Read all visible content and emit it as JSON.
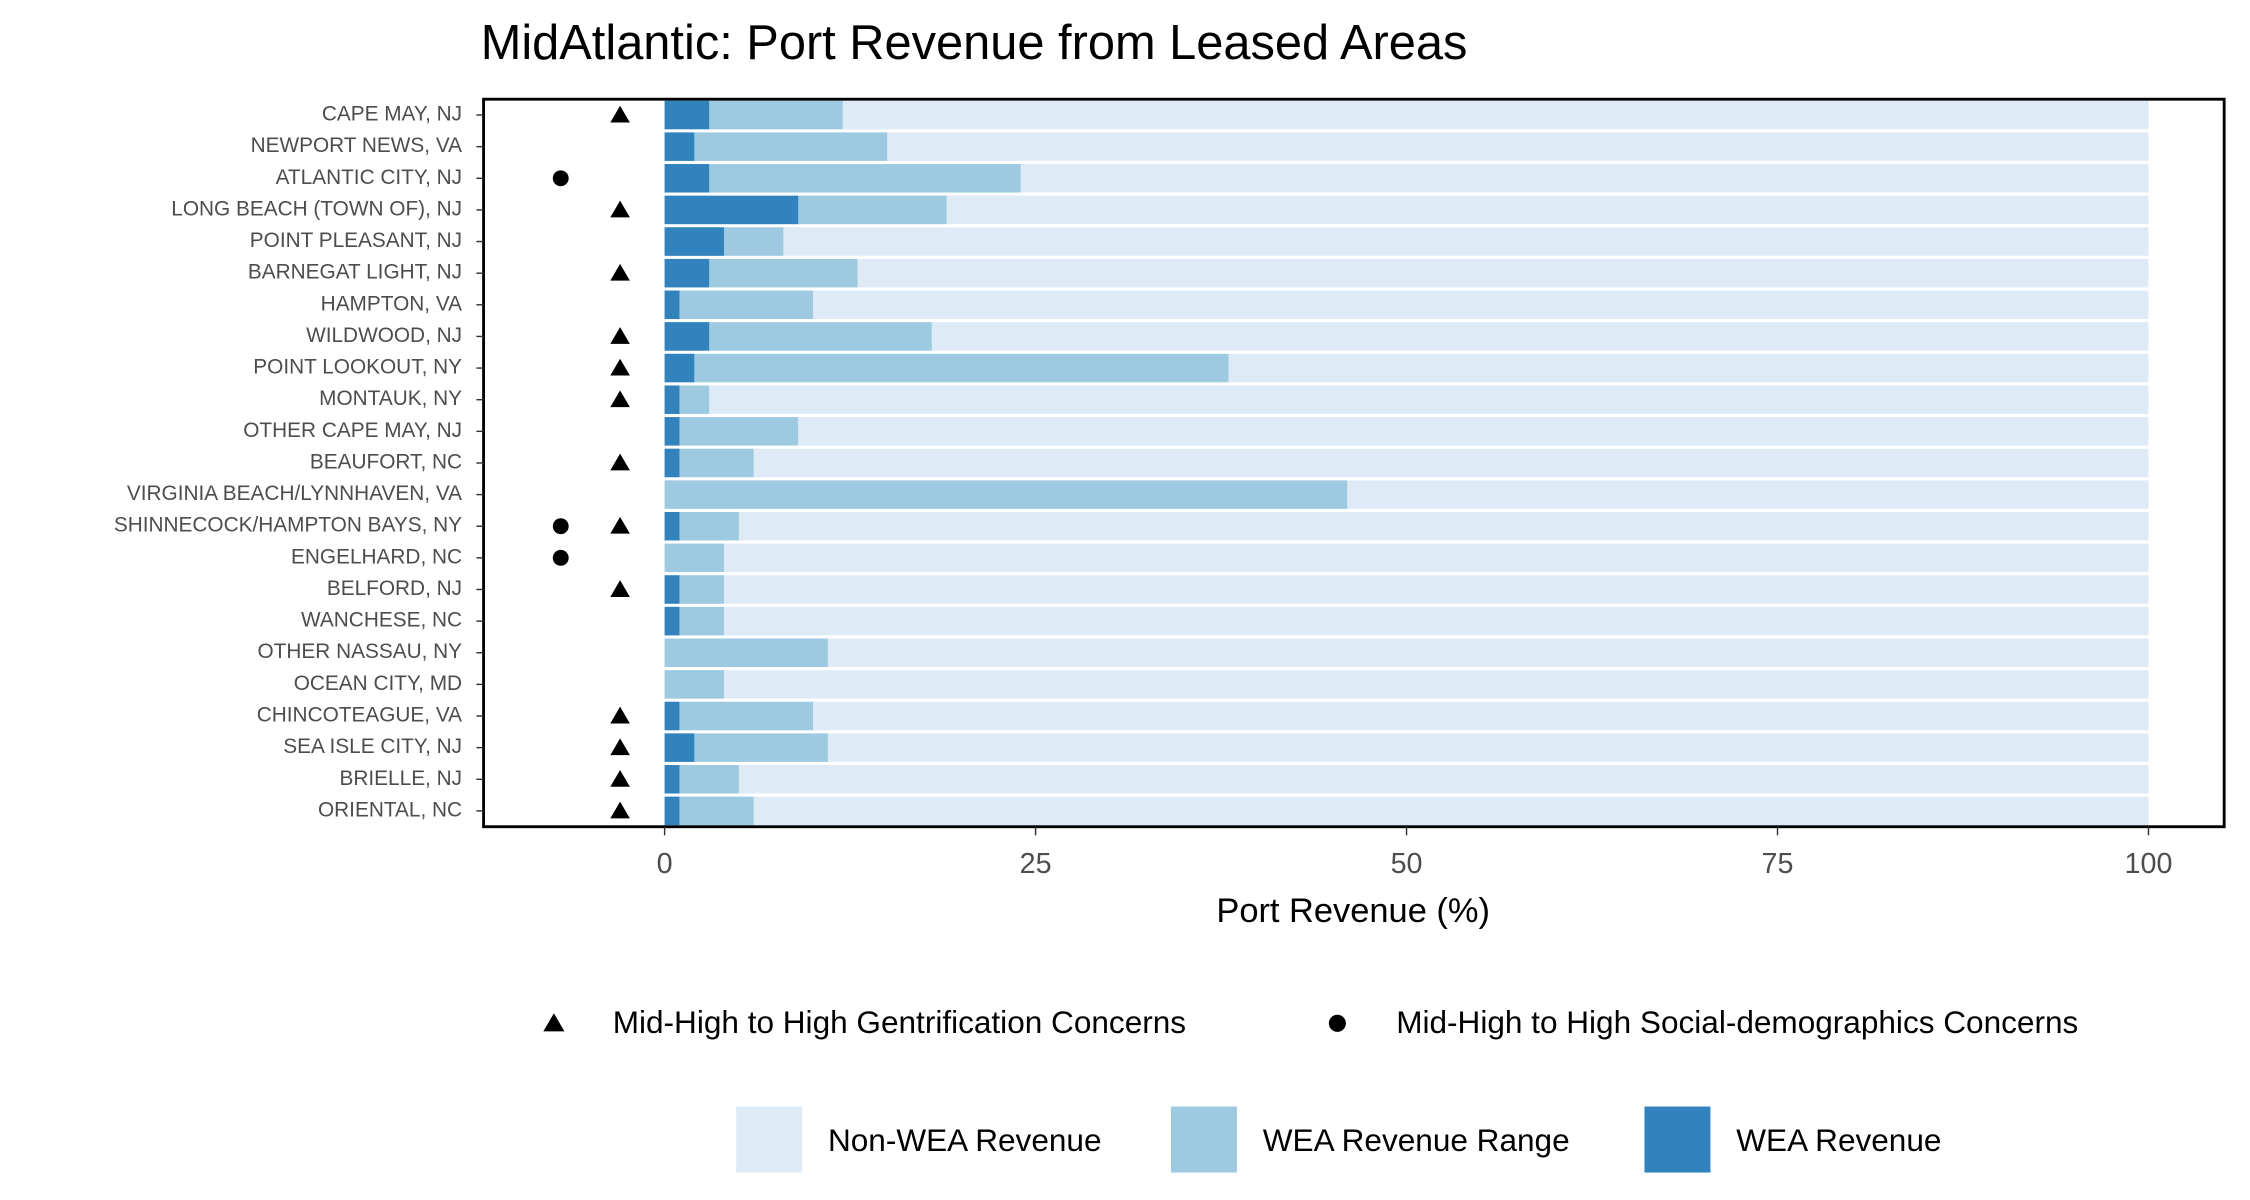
{
  "chart_data": {
    "type": "bar",
    "orientation": "horizontal",
    "title": "MidAtlantic: Port Revenue from Leased Areas",
    "x_label": "Port Revenue (%)",
    "categories": [
      "CAPE MAY, NJ",
      "NEWPORT NEWS, VA",
      "ATLANTIC CITY, NJ",
      "LONG BEACH (TOWN OF), NJ",
      "POINT PLEASANT, NJ",
      "BARNEGAT LIGHT, NJ",
      "HAMPTON, VA",
      "WILDWOOD, NJ",
      "POINT LOOKOUT, NY",
      "MONTAUK, NY",
      "OTHER CAPE MAY, NJ",
      "BEAUFORT, NC",
      "VIRGINIA BEACH/LYNNHAVEN, VA",
      "SHINNECOCK/HAMPTON BAYS, NY",
      "ENGELHARD, NC",
      "BELFORD, NJ",
      "WANCHESE, NC",
      "OTHER NASSAU, NY",
      "OCEAN CITY, MD",
      "CHINCOTEAGUE, VA",
      "SEA ISLE CITY, NJ",
      "BRIELLE, NJ",
      "ORIENTAL, NC"
    ],
    "series": [
      {
        "name": "Non-WEA Revenue",
        "color": "#deebf7",
        "values": [
          100,
          100,
          100,
          100,
          100,
          100,
          100,
          100,
          100,
          100,
          100,
          100,
          100,
          100,
          100,
          100,
          100,
          100,
          100,
          100,
          100,
          100,
          100
        ]
      },
      {
        "name": "WEA Revenue Range",
        "color": "#9ecae1",
        "values": [
          12,
          15,
          24,
          19,
          8,
          13,
          10,
          18,
          38,
          3,
          9,
          6,
          46,
          5,
          4,
          4,
          4,
          11,
          4,
          10,
          11,
          5,
          6
        ]
      },
      {
        "name": "WEA Revenue",
        "color": "#3182bd",
        "values": [
          3,
          2,
          3,
          9,
          4,
          3,
          1,
          3,
          2,
          1,
          1,
          1,
          null,
          1,
          null,
          1,
          1,
          null,
          null,
          1,
          2,
          1,
          1
        ]
      }
    ],
    "markers": [
      {
        "name": "Mid-High to High Gentrification Concerns",
        "shape": "triangle",
        "color": "#000000",
        "values": [
          -3,
          null,
          null,
          -3,
          null,
          -3,
          null,
          -3,
          -3,
          -3,
          null,
          -3,
          null,
          -3,
          null,
          -3,
          null,
          null,
          null,
          -3,
          -3,
          -3,
          -3
        ]
      },
      {
        "name": "Mid-High to High Social-demographics Concerns",
        "shape": "circle",
        "color": "#000000",
        "values": [
          null,
          null,
          -7,
          null,
          null,
          null,
          null,
          null,
          null,
          null,
          null,
          null,
          null,
          -7,
          -7,
          null,
          null,
          null,
          null,
          null,
          null,
          null,
          null
        ]
      }
    ],
    "xlim": [
      -12.2,
      105.1
    ],
    "xticks": [
      0,
      25,
      50,
      75,
      100
    ]
  }
}
